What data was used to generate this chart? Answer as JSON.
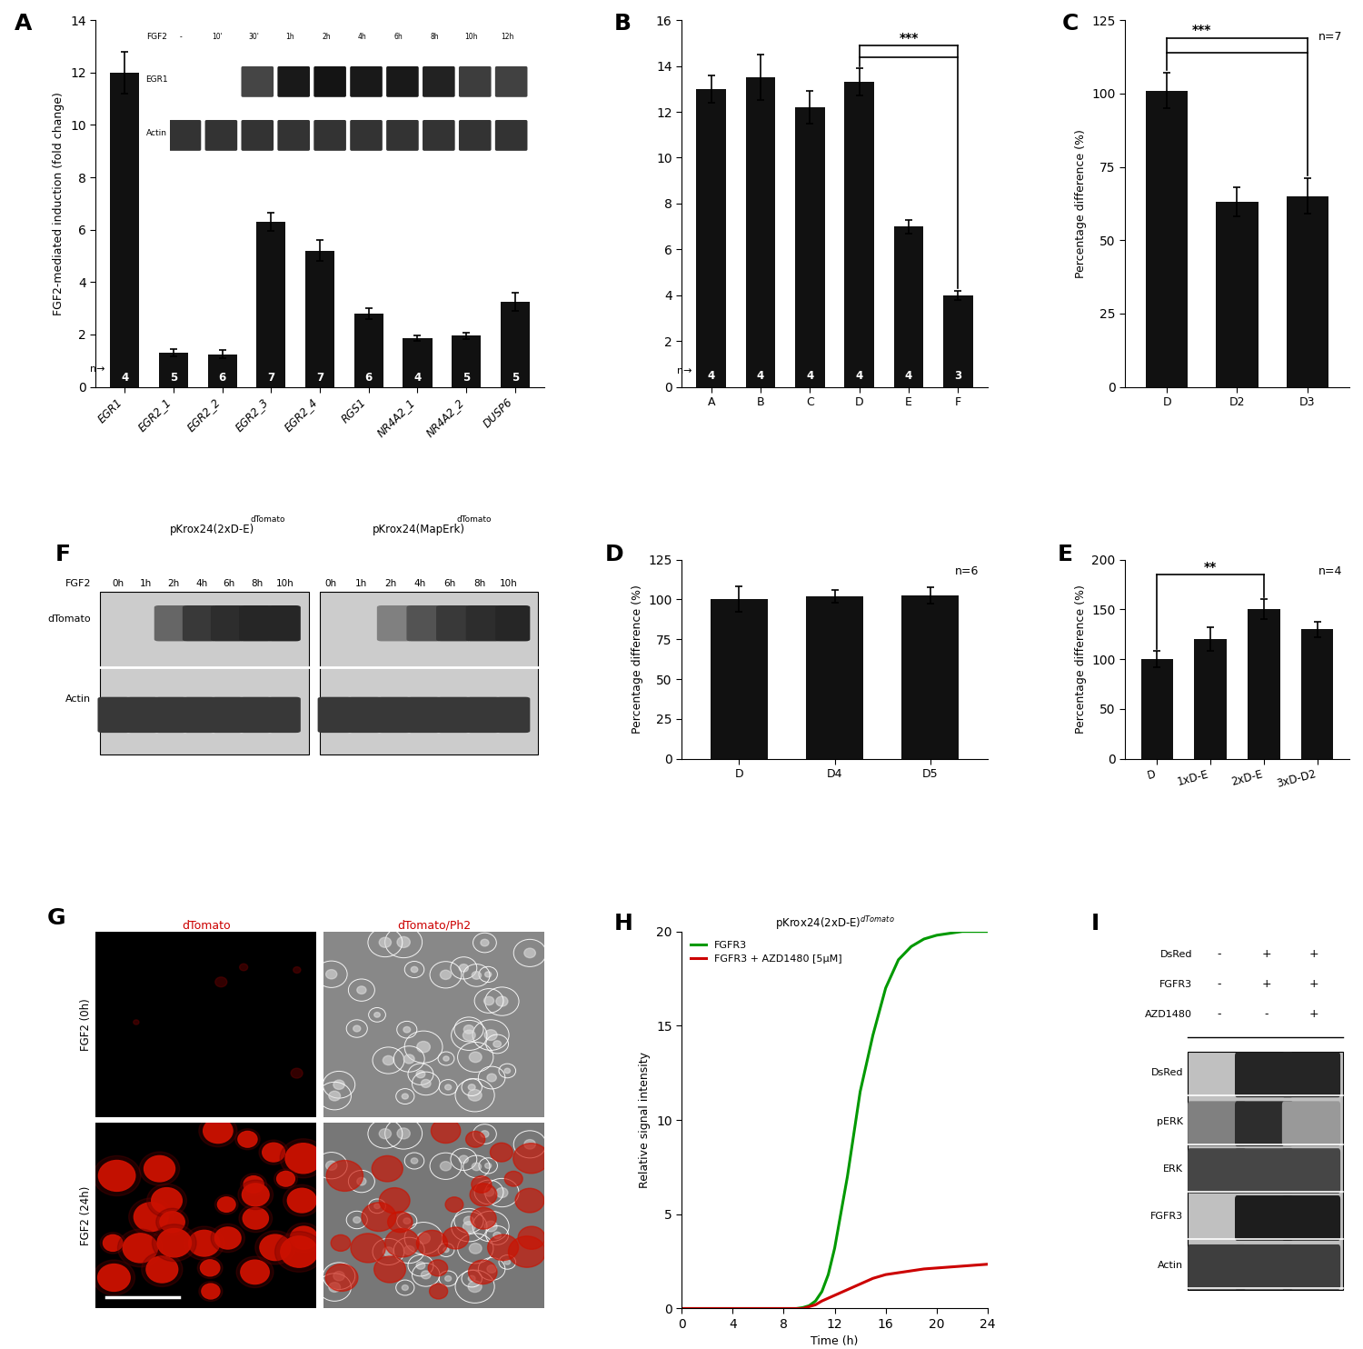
{
  "panel_A": {
    "categories": [
      "EGR1",
      "EGR2_1",
      "EGR2_2",
      "EGR2_3",
      "EGR2_4",
      "RGS1",
      "NR4A2_1",
      "NR4A2_2",
      "DUSP6"
    ],
    "values": [
      12.0,
      1.3,
      1.25,
      6.3,
      5.2,
      2.8,
      1.85,
      1.95,
      3.25
    ],
    "errors": [
      0.8,
      0.15,
      0.15,
      0.35,
      0.4,
      0.2,
      0.1,
      0.12,
      0.35
    ],
    "n_labels": [
      "4",
      "5",
      "6",
      "7",
      "7",
      "6",
      "4",
      "5",
      "5"
    ],
    "ylabel": "FGF2-mediated induction (fold change)",
    "ylim": [
      0,
      14
    ],
    "yticks": [
      0,
      2,
      4,
      6,
      8,
      10,
      12,
      14
    ],
    "label": "A"
  },
  "panel_B": {
    "categories": [
      "A",
      "B",
      "C",
      "D",
      "E",
      "F"
    ],
    "values": [
      13.0,
      13.5,
      12.2,
      13.3,
      7.0,
      4.0
    ],
    "errors": [
      0.6,
      1.0,
      0.7,
      0.6,
      0.3,
      0.2
    ],
    "n_labels": [
      "4",
      "4",
      "4",
      "4",
      "4",
      "3"
    ],
    "ylim": [
      0,
      16
    ],
    "yticks": [
      0,
      2,
      4,
      6,
      8,
      10,
      12,
      14,
      16
    ],
    "label": "B",
    "sig_text": "***"
  },
  "panel_C": {
    "categories": [
      "D",
      "D2",
      "D3"
    ],
    "values": [
      101.0,
      63.0,
      65.0
    ],
    "errors": [
      6.0,
      5.0,
      6.0
    ],
    "ylabel": "Percentage difference (%)",
    "ylim": [
      0,
      125
    ],
    "yticks": [
      0,
      25,
      50,
      75,
      100,
      125
    ],
    "label": "C",
    "n_text": "n=7",
    "sig_text": "***"
  },
  "panel_D": {
    "categories": [
      "D",
      "D4",
      "D5"
    ],
    "values": [
      100.0,
      102.0,
      102.5
    ],
    "errors": [
      8.0,
      4.0,
      5.0
    ],
    "ylabel": "Percentage difference (%)",
    "ylim": [
      0,
      125
    ],
    "yticks": [
      0,
      25,
      50,
      75,
      100,
      125
    ],
    "label": "D",
    "n_text": "n=6"
  },
  "panel_E": {
    "categories": [
      "D",
      "1xD-E",
      "2xD-E",
      "3xD-D2"
    ],
    "values": [
      100.0,
      120.0,
      150.0,
      130.0
    ],
    "errors": [
      8.0,
      12.0,
      10.0,
      8.0
    ],
    "ylabel": "Percentage difference (%)",
    "ylim": [
      0,
      200
    ],
    "yticks": [
      0,
      50,
      100,
      150,
      200
    ],
    "label": "E",
    "n_text": "n=4",
    "sig_text": "**"
  },
  "panel_H": {
    "label": "H",
    "title": "pKrox24(2xD-E)",
    "title_super": "dTomato",
    "xlabel": "Time (h)",
    "ylabel": "Relative signal intensity",
    "xlim": [
      0,
      24
    ],
    "ylim": [
      0,
      20
    ],
    "xticks": [
      0,
      4,
      8,
      12,
      16,
      20,
      24
    ],
    "yticks": [
      0,
      5,
      10,
      15,
      20
    ],
    "line1_label": "FGFR3",
    "line1_color": "#009900",
    "line2_label": "FGFR3 + AZD1480 [5μM]",
    "line2_color": "#cc0000",
    "line1_x": [
      0,
      1,
      2,
      3,
      4,
      5,
      6,
      7,
      8,
      9,
      9.5,
      10,
      10.5,
      11,
      11.5,
      12,
      13,
      14,
      15,
      16,
      17,
      18,
      19,
      20,
      21,
      22,
      23,
      24
    ],
    "line1_y": [
      0,
      0,
      0,
      0,
      0,
      0,
      0,
      0,
      0,
      0,
      0.05,
      0.15,
      0.4,
      0.9,
      1.8,
      3.2,
      7.0,
      11.5,
      14.5,
      17.0,
      18.5,
      19.2,
      19.6,
      19.8,
      19.9,
      20.0,
      20.0,
      20.0
    ],
    "line2_x": [
      0,
      1,
      2,
      3,
      4,
      5,
      6,
      7,
      8,
      9,
      9.5,
      10,
      10.5,
      11,
      12,
      13,
      14,
      15,
      16,
      17,
      18,
      19,
      20,
      21,
      22,
      23,
      24
    ],
    "line2_y": [
      0,
      0,
      0,
      0,
      0,
      0,
      0,
      0,
      0,
      0,
      0.0,
      0.1,
      0.2,
      0.4,
      0.7,
      1.0,
      1.3,
      1.6,
      1.8,
      1.9,
      2.0,
      2.1,
      2.15,
      2.2,
      2.25,
      2.3,
      2.35
    ]
  },
  "bg_color": "#ffffff",
  "bar_color": "#111111"
}
